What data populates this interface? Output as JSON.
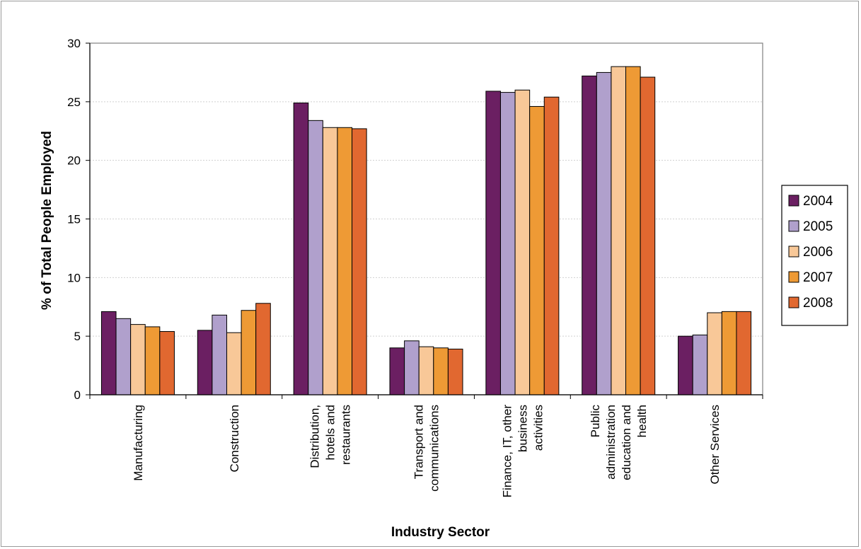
{
  "chart_data": {
    "type": "bar",
    "title": "",
    "xlabel": "Industry Sector",
    "ylabel": "% of Total People Employed",
    "ylim": [
      0,
      30
    ],
    "yticks": [
      0,
      5,
      10,
      15,
      20,
      25,
      30
    ],
    "grid": true,
    "legend": "right",
    "categories": [
      [
        "Manufacturing"
      ],
      [
        "Construction"
      ],
      [
        "Distribution,",
        "hotels and",
        "restaurants"
      ],
      [
        "Transport and",
        "communications"
      ],
      [
        "Finance, IT, other",
        "business",
        "activities"
      ],
      [
        "Public",
        "administration",
        "education and",
        "health"
      ],
      [
        "Other Services"
      ]
    ],
    "series": [
      {
        "name": "2004",
        "color": "#6b1f62",
        "values": [
          7.1,
          5.5,
          24.9,
          4.0,
          25.9,
          27.2,
          5.0
        ]
      },
      {
        "name": "2005",
        "color": "#b0a0cc",
        "values": [
          6.5,
          6.8,
          23.4,
          4.6,
          25.8,
          27.5,
          5.1
        ]
      },
      {
        "name": "2006",
        "color": "#f8c898",
        "values": [
          6.0,
          5.3,
          22.8,
          4.1,
          26.0,
          28.0,
          7.0
        ]
      },
      {
        "name": "2007",
        "color": "#ee9a35",
        "values": [
          5.8,
          7.2,
          22.8,
          4.0,
          24.6,
          28.0,
          7.1
        ]
      },
      {
        "name": "2008",
        "color": "#e16830",
        "values": [
          5.4,
          7.8,
          22.7,
          3.9,
          25.4,
          27.1,
          7.1
        ]
      }
    ]
  }
}
